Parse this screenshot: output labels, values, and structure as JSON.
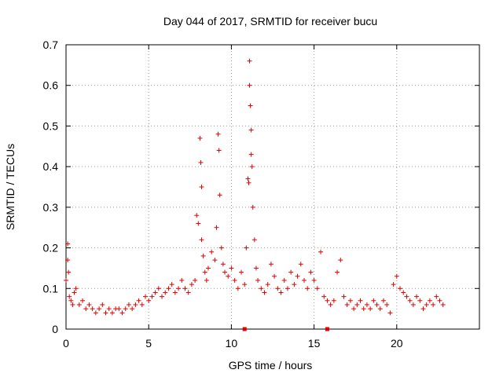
{
  "chart_data": {
    "type": "scatter",
    "title": "Day 044 of 2017, SRMTID for receiver bucu",
    "xlabel": "GPS time / hours",
    "ylabel": "SRMTID / TECUs",
    "xlim": [
      0,
      25
    ],
    "ylim": [
      0,
      0.7
    ],
    "xticks": [
      0,
      5,
      10,
      15,
      20
    ],
    "yticks": [
      0,
      0.1,
      0.2,
      0.3,
      0.4,
      0.5,
      0.6,
      0.7
    ],
    "xtick_labels": [
      "0",
      "5",
      "10",
      "15",
      "20"
    ],
    "ytick_labels": [
      "0",
      "0.1",
      "0.2",
      "0.3",
      "0.4",
      "0.5",
      "0.6",
      "0.7"
    ],
    "grid": true,
    "marker": "+",
    "color": "#e00000",
    "series": [
      {
        "name": "SRMTID",
        "x": [
          0.0,
          0.1,
          0.1,
          0.15,
          0.2,
          0.3,
          0.4,
          0.5,
          0.6,
          0.8,
          1.0,
          1.2,
          1.4,
          1.6,
          1.8,
          2.0,
          2.2,
          2.4,
          2.6,
          2.8,
          3.0,
          3.2,
          3.4,
          3.6,
          3.8,
          4.0,
          4.2,
          4.4,
          4.6,
          4.8,
          5.0,
          5.2,
          5.4,
          5.6,
          5.8,
          6.0,
          6.2,
          6.4,
          6.6,
          6.8,
          7.0,
          7.2,
          7.4,
          7.6,
          7.8,
          7.9,
          8.0,
          8.1,
          8.15,
          8.2,
          8.2,
          8.3,
          8.4,
          8.5,
          8.6,
          8.8,
          9.0,
          9.1,
          9.2,
          9.25,
          9.3,
          9.4,
          9.5,
          9.6,
          9.8,
          10.0,
          10.2,
          10.4,
          10.6,
          10.8,
          10.9,
          11.0,
          11.05,
          11.1,
          11.1,
          11.15,
          11.2,
          11.2,
          11.25,
          11.3,
          11.4,
          11.5,
          11.6,
          11.8,
          12.0,
          12.2,
          12.4,
          12.6,
          12.8,
          13.0,
          13.2,
          13.4,
          13.6,
          13.8,
          14.0,
          14.2,
          14.4,
          14.6,
          14.8,
          15.0,
          15.2,
          15.4,
          15.6,
          15.8,
          16.0,
          16.2,
          16.4,
          16.6,
          16.8,
          17.0,
          17.2,
          17.4,
          17.6,
          17.8,
          18.0,
          18.2,
          18.4,
          18.6,
          18.8,
          19.0,
          19.2,
          19.4,
          19.6,
          19.8,
          20.0,
          20.2,
          20.4,
          20.6,
          20.8,
          21.0,
          21.2,
          21.4,
          21.6,
          21.8,
          22.0,
          22.2,
          22.4,
          22.6,
          22.8
        ],
        "y": [
          0.12,
          0.21,
          0.17,
          0.14,
          0.08,
          0.07,
          0.06,
          0.09,
          0.1,
          0.06,
          0.07,
          0.05,
          0.06,
          0.05,
          0.04,
          0.05,
          0.06,
          0.04,
          0.05,
          0.04,
          0.05,
          0.05,
          0.04,
          0.05,
          0.06,
          0.05,
          0.06,
          0.07,
          0.06,
          0.08,
          0.07,
          0.08,
          0.09,
          0.1,
          0.08,
          0.09,
          0.1,
          0.11,
          0.09,
          0.1,
          0.12,
          0.1,
          0.09,
          0.11,
          0.12,
          0.28,
          0.26,
          0.47,
          0.41,
          0.35,
          0.22,
          0.18,
          0.14,
          0.12,
          0.15,
          0.19,
          0.17,
          0.25,
          0.48,
          0.44,
          0.33,
          0.2,
          0.16,
          0.14,
          0.13,
          0.15,
          0.12,
          0.1,
          0.14,
          0.11,
          0.2,
          0.37,
          0.36,
          0.66,
          0.6,
          0.55,
          0.49,
          0.43,
          0.4,
          0.3,
          0.22,
          0.15,
          0.12,
          0.1,
          0.09,
          0.11,
          0.16,
          0.13,
          0.1,
          0.09,
          0.12,
          0.1,
          0.14,
          0.11,
          0.13,
          0.16,
          0.12,
          0.1,
          0.14,
          0.12,
          0.1,
          0.19,
          0.08,
          0.07,
          0.06,
          0.07,
          0.14,
          0.17,
          0.08,
          0.06,
          0.07,
          0.05,
          0.06,
          0.07,
          0.05,
          0.06,
          0.05,
          0.07,
          0.06,
          0.05,
          0.07,
          0.06,
          0.04,
          0.11,
          0.13,
          0.1,
          0.09,
          0.08,
          0.07,
          0.06,
          0.08,
          0.07,
          0.05,
          0.06,
          0.07,
          0.06,
          0.08,
          0.07,
          0.06
        ]
      }
    ],
    "axis_markers_x": [
      10.8,
      15.8
    ]
  }
}
